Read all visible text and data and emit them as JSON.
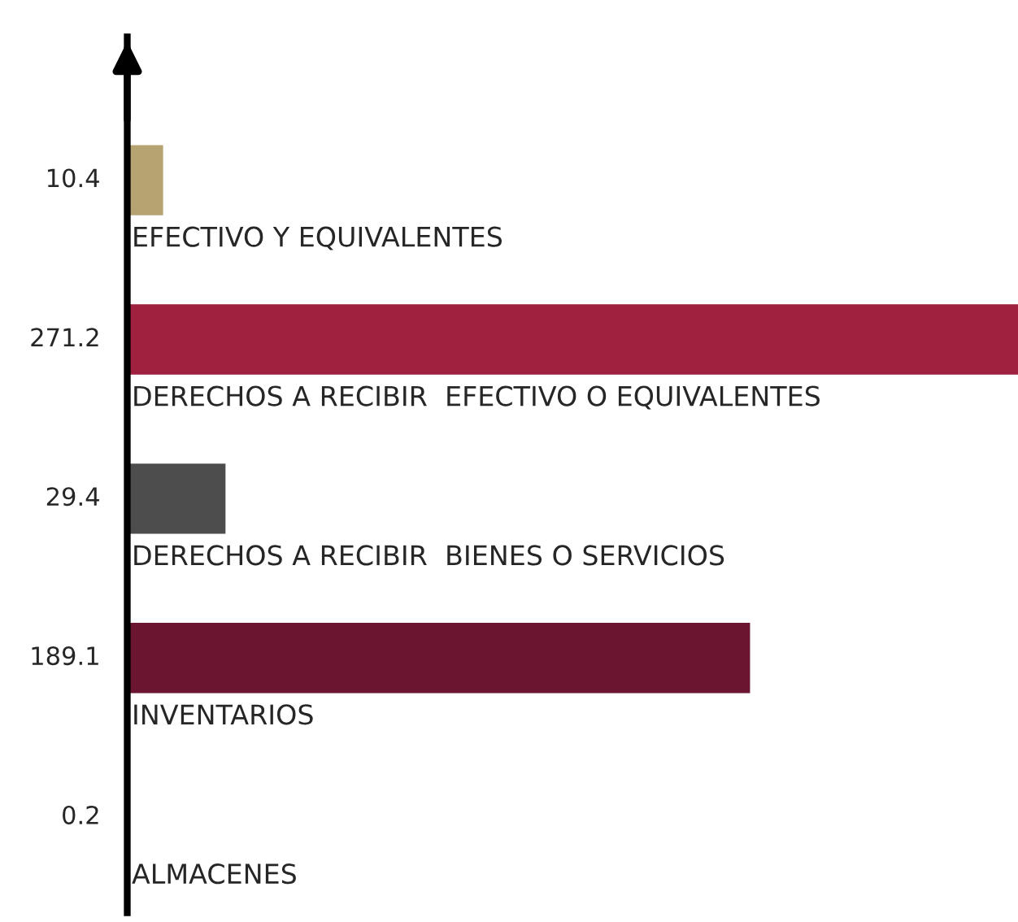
{
  "chart_data": {
    "type": "bar",
    "orientation": "horizontal",
    "data_labels": true,
    "categories": [
      "EFECTIVO Y EQUIVALENTES",
      "DERECHOS A RECIBIR  EFECTIVO O EQUIVALENTES",
      "DERECHOS A RECIBIR  BIENES O SERVICIOS",
      "INVENTARIOS",
      "ALMACENES"
    ],
    "values": [
      10.4,
      271.2,
      29.4,
      189.1,
      0.2
    ],
    "colors": [
      "#b5a371",
      "#a0213f",
      "#4d4d4d",
      "#6b1530",
      "#6d2350"
    ]
  }
}
